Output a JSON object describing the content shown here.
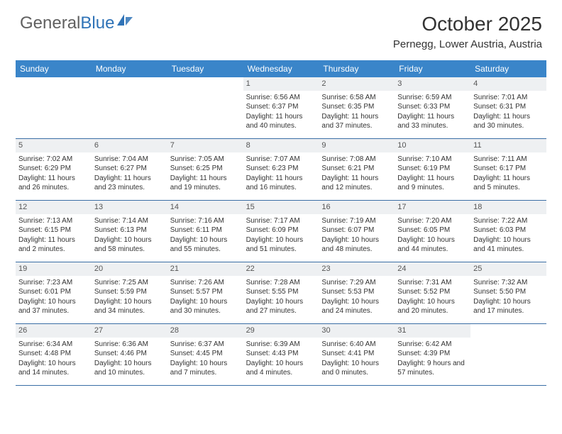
{
  "logo": {
    "text1": "General",
    "text2": "Blue"
  },
  "title": "October 2025",
  "location": "Pernegg, Lower Austria, Austria",
  "colors": {
    "header_bg": "#3a85c9",
    "header_text": "#ffffff",
    "date_bg": "#eef0f2",
    "border": "#3a6ea5",
    "logo_gray": "#606060",
    "logo_blue": "#2f73b7"
  },
  "day_names": [
    "Sunday",
    "Monday",
    "Tuesday",
    "Wednesday",
    "Thursday",
    "Friday",
    "Saturday"
  ],
  "weeks": [
    [
      {
        "date": "",
        "sunrise": "",
        "sunset": "",
        "daylight": ""
      },
      {
        "date": "",
        "sunrise": "",
        "sunset": "",
        "daylight": ""
      },
      {
        "date": "",
        "sunrise": "",
        "sunset": "",
        "daylight": ""
      },
      {
        "date": "1",
        "sunrise": "Sunrise: 6:56 AM",
        "sunset": "Sunset: 6:37 PM",
        "daylight": "Daylight: 11 hours and 40 minutes."
      },
      {
        "date": "2",
        "sunrise": "Sunrise: 6:58 AM",
        "sunset": "Sunset: 6:35 PM",
        "daylight": "Daylight: 11 hours and 37 minutes."
      },
      {
        "date": "3",
        "sunrise": "Sunrise: 6:59 AM",
        "sunset": "Sunset: 6:33 PM",
        "daylight": "Daylight: 11 hours and 33 minutes."
      },
      {
        "date": "4",
        "sunrise": "Sunrise: 7:01 AM",
        "sunset": "Sunset: 6:31 PM",
        "daylight": "Daylight: 11 hours and 30 minutes."
      }
    ],
    [
      {
        "date": "5",
        "sunrise": "Sunrise: 7:02 AM",
        "sunset": "Sunset: 6:29 PM",
        "daylight": "Daylight: 11 hours and 26 minutes."
      },
      {
        "date": "6",
        "sunrise": "Sunrise: 7:04 AM",
        "sunset": "Sunset: 6:27 PM",
        "daylight": "Daylight: 11 hours and 23 minutes."
      },
      {
        "date": "7",
        "sunrise": "Sunrise: 7:05 AM",
        "sunset": "Sunset: 6:25 PM",
        "daylight": "Daylight: 11 hours and 19 minutes."
      },
      {
        "date": "8",
        "sunrise": "Sunrise: 7:07 AM",
        "sunset": "Sunset: 6:23 PM",
        "daylight": "Daylight: 11 hours and 16 minutes."
      },
      {
        "date": "9",
        "sunrise": "Sunrise: 7:08 AM",
        "sunset": "Sunset: 6:21 PM",
        "daylight": "Daylight: 11 hours and 12 minutes."
      },
      {
        "date": "10",
        "sunrise": "Sunrise: 7:10 AM",
        "sunset": "Sunset: 6:19 PM",
        "daylight": "Daylight: 11 hours and 9 minutes."
      },
      {
        "date": "11",
        "sunrise": "Sunrise: 7:11 AM",
        "sunset": "Sunset: 6:17 PM",
        "daylight": "Daylight: 11 hours and 5 minutes."
      }
    ],
    [
      {
        "date": "12",
        "sunrise": "Sunrise: 7:13 AM",
        "sunset": "Sunset: 6:15 PM",
        "daylight": "Daylight: 11 hours and 2 minutes."
      },
      {
        "date": "13",
        "sunrise": "Sunrise: 7:14 AM",
        "sunset": "Sunset: 6:13 PM",
        "daylight": "Daylight: 10 hours and 58 minutes."
      },
      {
        "date": "14",
        "sunrise": "Sunrise: 7:16 AM",
        "sunset": "Sunset: 6:11 PM",
        "daylight": "Daylight: 10 hours and 55 minutes."
      },
      {
        "date": "15",
        "sunrise": "Sunrise: 7:17 AM",
        "sunset": "Sunset: 6:09 PM",
        "daylight": "Daylight: 10 hours and 51 minutes."
      },
      {
        "date": "16",
        "sunrise": "Sunrise: 7:19 AM",
        "sunset": "Sunset: 6:07 PM",
        "daylight": "Daylight: 10 hours and 48 minutes."
      },
      {
        "date": "17",
        "sunrise": "Sunrise: 7:20 AM",
        "sunset": "Sunset: 6:05 PM",
        "daylight": "Daylight: 10 hours and 44 minutes."
      },
      {
        "date": "18",
        "sunrise": "Sunrise: 7:22 AM",
        "sunset": "Sunset: 6:03 PM",
        "daylight": "Daylight: 10 hours and 41 minutes."
      }
    ],
    [
      {
        "date": "19",
        "sunrise": "Sunrise: 7:23 AM",
        "sunset": "Sunset: 6:01 PM",
        "daylight": "Daylight: 10 hours and 37 minutes."
      },
      {
        "date": "20",
        "sunrise": "Sunrise: 7:25 AM",
        "sunset": "Sunset: 5:59 PM",
        "daylight": "Daylight: 10 hours and 34 minutes."
      },
      {
        "date": "21",
        "sunrise": "Sunrise: 7:26 AM",
        "sunset": "Sunset: 5:57 PM",
        "daylight": "Daylight: 10 hours and 30 minutes."
      },
      {
        "date": "22",
        "sunrise": "Sunrise: 7:28 AM",
        "sunset": "Sunset: 5:55 PM",
        "daylight": "Daylight: 10 hours and 27 minutes."
      },
      {
        "date": "23",
        "sunrise": "Sunrise: 7:29 AM",
        "sunset": "Sunset: 5:53 PM",
        "daylight": "Daylight: 10 hours and 24 minutes."
      },
      {
        "date": "24",
        "sunrise": "Sunrise: 7:31 AM",
        "sunset": "Sunset: 5:52 PM",
        "daylight": "Daylight: 10 hours and 20 minutes."
      },
      {
        "date": "25",
        "sunrise": "Sunrise: 7:32 AM",
        "sunset": "Sunset: 5:50 PM",
        "daylight": "Daylight: 10 hours and 17 minutes."
      }
    ],
    [
      {
        "date": "26",
        "sunrise": "Sunrise: 6:34 AM",
        "sunset": "Sunset: 4:48 PM",
        "daylight": "Daylight: 10 hours and 14 minutes."
      },
      {
        "date": "27",
        "sunrise": "Sunrise: 6:36 AM",
        "sunset": "Sunset: 4:46 PM",
        "daylight": "Daylight: 10 hours and 10 minutes."
      },
      {
        "date": "28",
        "sunrise": "Sunrise: 6:37 AM",
        "sunset": "Sunset: 4:45 PM",
        "daylight": "Daylight: 10 hours and 7 minutes."
      },
      {
        "date": "29",
        "sunrise": "Sunrise: 6:39 AM",
        "sunset": "Sunset: 4:43 PM",
        "daylight": "Daylight: 10 hours and 4 minutes."
      },
      {
        "date": "30",
        "sunrise": "Sunrise: 6:40 AM",
        "sunset": "Sunset: 4:41 PM",
        "daylight": "Daylight: 10 hours and 0 minutes."
      },
      {
        "date": "31",
        "sunrise": "Sunrise: 6:42 AM",
        "sunset": "Sunset: 4:39 PM",
        "daylight": "Daylight: 9 hours and 57 minutes."
      },
      {
        "date": "",
        "sunrise": "",
        "sunset": "",
        "daylight": ""
      }
    ]
  ]
}
